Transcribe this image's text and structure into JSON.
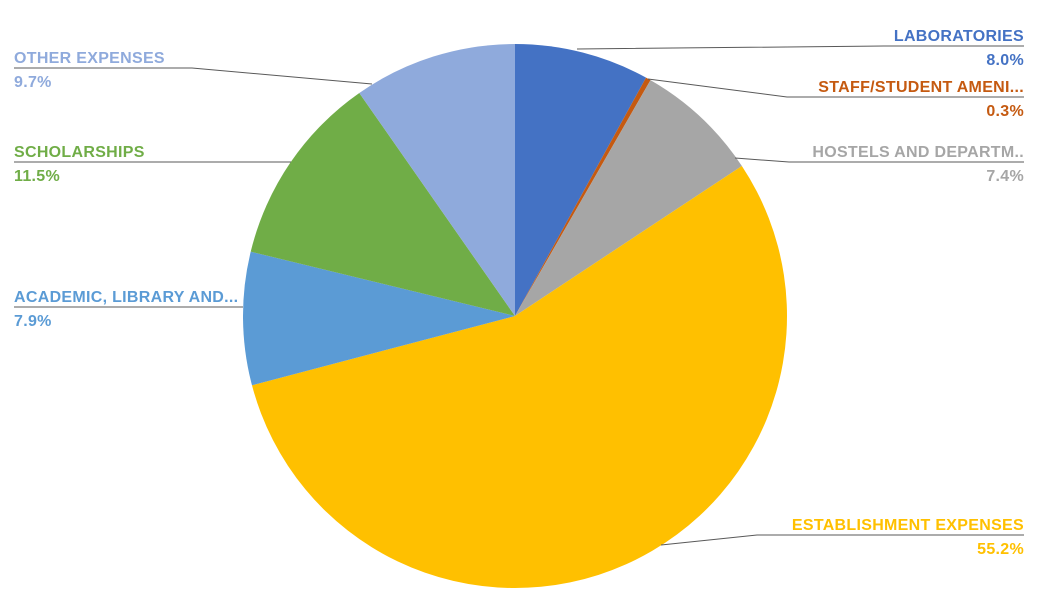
{
  "chart_data": {
    "type": "pie",
    "title": "",
    "direction": "clockwise",
    "start_angle_deg": 0,
    "background_color": "#FFFFFF",
    "leader_line_color": "#595959",
    "slices": [
      {
        "label": "LABORATORIES",
        "value": 8.0,
        "pct_label": "8.0%",
        "color": "#4472C4",
        "side": "right"
      },
      {
        "label": "STAFF/STUDENT AMENI...",
        "value": 0.3,
        "pct_label": "0.3%",
        "color": "#C55A11",
        "side": "right"
      },
      {
        "label": "HOSTELS AND DEPARTM..",
        "value": 7.4,
        "pct_label": "7.4%",
        "color": "#A6A6A6",
        "side": "right"
      },
      {
        "label": "ESTABLISHMENT EXPENSES",
        "value": 55.2,
        "pct_label": "55.2%",
        "color": "#FFC000",
        "side": "right"
      },
      {
        "label": "ACADEMIC, LIBRARY AND...",
        "value": 7.9,
        "pct_label": "7.9%",
        "color": "#5B9BD5",
        "side": "left"
      },
      {
        "label": "SCHOLARSHIPS",
        "value": 11.5,
        "pct_label": "11.5%",
        "color": "#70AD47",
        "side": "left"
      },
      {
        "label": "OTHER EXPENSES",
        "value": 9.7,
        "pct_label": "9.7%",
        "color": "#8FAADC",
        "side": "left"
      }
    ]
  }
}
